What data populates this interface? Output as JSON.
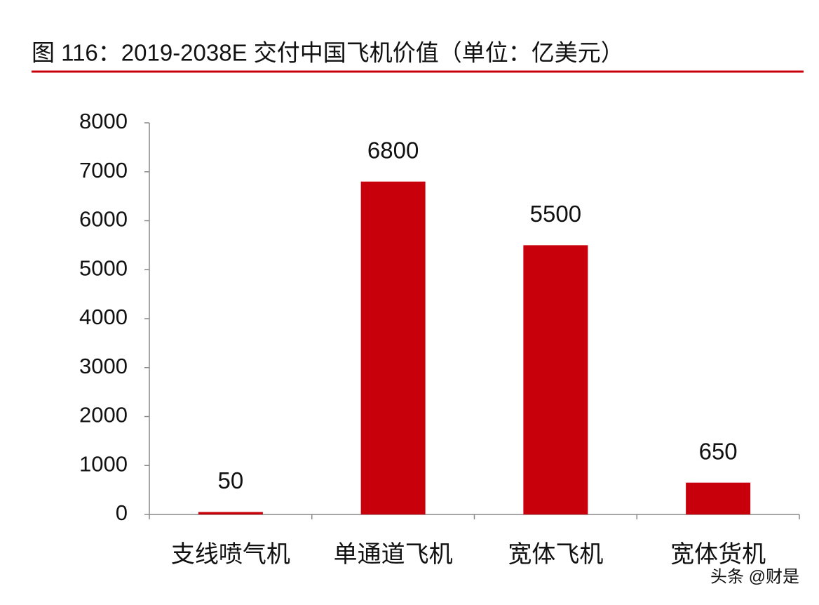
{
  "chart_data": {
    "type": "bar",
    "title": "图 116：2019-2038E 交付中国飞机价值（单位：亿美元）",
    "categories": [
      "支线喷气机",
      "单通道飞机",
      "宽体飞机",
      "宽体货机"
    ],
    "values": [
      50,
      6800,
      5500,
      650
    ],
    "color": "#c8000b",
    "ylim": [
      0,
      8000
    ],
    "yticks": [
      0,
      1000,
      2000,
      3000,
      4000,
      5000,
      6000,
      7000,
      8000
    ],
    "grid": false,
    "data_labels": true
  },
  "watermark": "头条 @财是"
}
